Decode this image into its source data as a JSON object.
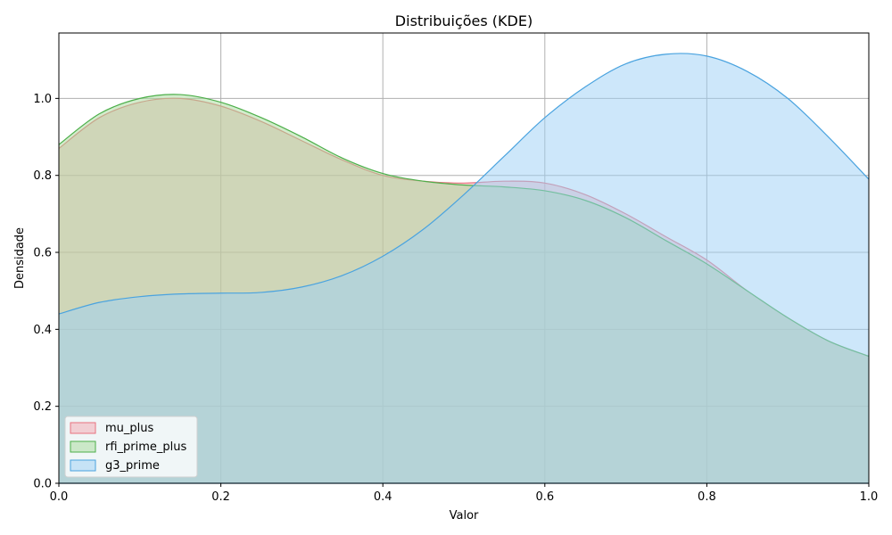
{
  "chart_data": {
    "type": "area",
    "title": "Distribuições (KDE)",
    "xlabel": "Valor",
    "ylabel": "Densidade",
    "xlim": [
      0.0,
      1.0
    ],
    "ylim": [
      0.0,
      1.17
    ],
    "xticks": [
      0.0,
      0.2,
      0.4,
      0.6,
      0.8,
      1.0
    ],
    "xtick_labels": [
      "0.0",
      "0.2",
      "0.4",
      "0.6",
      "0.8",
      "1.0"
    ],
    "yticks": [
      0.0,
      0.2,
      0.4,
      0.6,
      0.8,
      1.0
    ],
    "ytick_labels": [
      "0.0",
      "0.2",
      "0.4",
      "0.6",
      "0.8",
      "1.0"
    ],
    "grid": true,
    "legend_position": "bottom-left",
    "x": [
      0.0,
      0.05,
      0.1,
      0.15,
      0.2,
      0.25,
      0.3,
      0.35,
      0.4,
      0.45,
      0.5,
      0.55,
      0.6,
      0.65,
      0.7,
      0.75,
      0.8,
      0.85,
      0.9,
      0.95,
      1.0
    ],
    "series": [
      {
        "name": "mu_plus",
        "values": [
          0.87,
          0.95,
          0.99,
          1.0,
          0.98,
          0.94,
          0.89,
          0.84,
          0.8,
          0.785,
          0.78,
          0.785,
          0.78,
          0.75,
          0.7,
          0.64,
          0.58,
          0.5,
          0.43,
          0.37,
          0.33
        ],
        "line_color": "#e8737f",
        "fill_color": "#f4a6b0"
      },
      {
        "name": "rfi_prime_plus",
        "values": [
          0.88,
          0.96,
          1.0,
          1.01,
          0.99,
          0.95,
          0.9,
          0.845,
          0.805,
          0.785,
          0.775,
          0.77,
          0.76,
          0.735,
          0.69,
          0.63,
          0.57,
          0.5,
          0.43,
          0.37,
          0.33
        ],
        "line_color": "#4daf4a",
        "fill_color": "#a5d99a"
      },
      {
        "name": "g3_prime",
        "values": [
          0.44,
          0.47,
          0.485,
          0.492,
          0.494,
          0.496,
          0.51,
          0.54,
          0.59,
          0.66,
          0.75,
          0.85,
          0.95,
          1.03,
          1.09,
          1.115,
          1.11,
          1.07,
          1.0,
          0.9,
          0.79
        ],
        "line_color": "#4aa3df",
        "fill_color": "#9ccff5"
      }
    ]
  }
}
